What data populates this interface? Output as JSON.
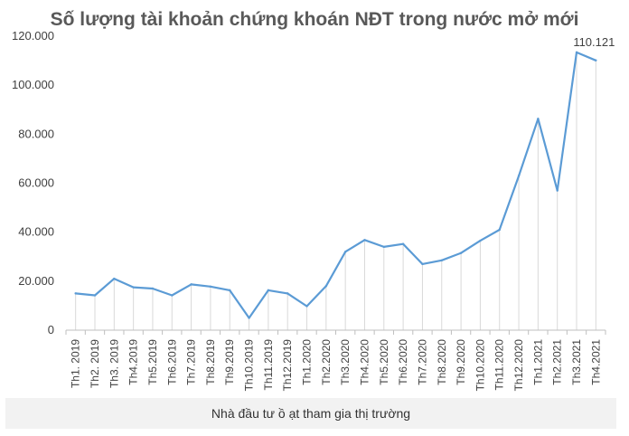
{
  "chart_data": {
    "type": "line",
    "title": "Số lượng tài khoản chứng khoán NĐT trong nước mở mới",
    "xlabel": "",
    "ylabel": "",
    "ylim": [
      0,
      120000
    ],
    "yticks": [
      0,
      20000,
      40000,
      60000,
      80000,
      100000,
      120000
    ],
    "ytick_labels": [
      "0",
      "20.000",
      "40.000",
      "60.000",
      "80.000",
      "100.000",
      "120.000"
    ],
    "grid": false,
    "categories": [
      "Th1. 2019",
      "Th2. 2019",
      "Th3. 2019",
      "Th4.2019",
      "Th5.2019",
      "Th6.2019",
      "Th7.2019",
      "Th8.2019",
      "Th9.2019",
      "Th10.2019",
      "Th11.2019",
      "Th12.2019",
      "Th1.2020",
      "Th2.2020",
      "Th3.2020",
      "Th4.2020",
      "Th5.2020",
      "Th6.2020",
      "Th7.2020",
      "Th8.2020",
      "Th9.2020",
      "Th10.2020",
      "Th11.2020",
      "Th12.2020",
      "Th1.2021",
      "Th2.2021",
      "Th3.2021",
      "Th4.2021"
    ],
    "series": [
      {
        "values": [
          15000,
          14200,
          21000,
          17500,
          17000,
          14200,
          18700,
          17800,
          16300,
          5000,
          16300,
          15000,
          9800,
          18000,
          32000,
          36800,
          34000,
          35200,
          27000,
          28500,
          31500,
          36500,
          41000,
          63000,
          86300,
          57000,
          113400,
          110121
        ],
        "color": "#5b9bd5"
      }
    ],
    "annotations": [
      {
        "category": "Th4.2021",
        "text": "110.121"
      }
    ]
  },
  "caption": "Nhà đầu tư ồ ạt tham gia thị trường"
}
